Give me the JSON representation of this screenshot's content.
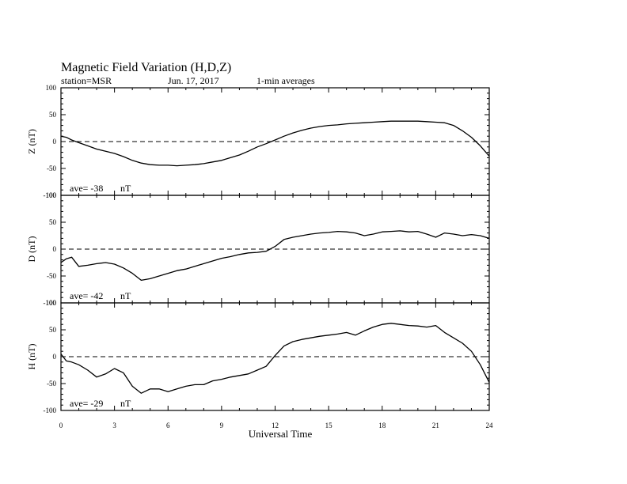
{
  "header": {
    "title": "Magnetic Field Variation (H,D,Z)",
    "station": "station=MSR",
    "date": "Jun. 17, 2017",
    "averaging": "1-min averages"
  },
  "chart_data": {
    "type": "line",
    "xlabel": "Universal Time",
    "xlim": [
      0,
      24
    ],
    "x_ticks": [
      "0",
      "3",
      "6",
      "9",
      "12",
      "15",
      "18",
      "21",
      "24"
    ],
    "grid": false,
    "zero_reference_line": "dashed",
    "panels": [
      {
        "name": "Z",
        "ylabel": "Z (nT)",
        "ylim": [
          -100,
          100
        ],
        "y_ticks": [
          "100",
          "50",
          "0",
          "-50",
          "-100"
        ],
        "average_label": "ave= -38",
        "average_unit": "nT",
        "x": [
          0,
          0.3,
          0.6,
          1,
          1.5,
          2,
          2.5,
          3,
          3.5,
          4,
          4.5,
          5,
          5.5,
          6,
          6.5,
          7,
          7.5,
          8,
          8.5,
          9,
          9.5,
          10,
          10.5,
          11,
          11.5,
          12,
          12.5,
          13,
          13.5,
          14,
          14.5,
          15,
          15.5,
          16,
          16.5,
          17,
          17.5,
          18,
          18.5,
          19,
          19.5,
          20,
          20.5,
          21,
          21.5,
          22,
          22.5,
          23,
          23.5,
          24
        ],
        "values": [
          10,
          8,
          3,
          -2,
          -8,
          -14,
          -18,
          -22,
          -28,
          -35,
          -40,
          -43,
          -44,
          -44,
          -45,
          -44,
          -43,
          -41,
          -38,
          -35,
          -30,
          -25,
          -18,
          -10,
          -4,
          3,
          10,
          16,
          21,
          25,
          28,
          30,
          31,
          33,
          34,
          35,
          36,
          37,
          38,
          38,
          38,
          38,
          37,
          36,
          35,
          30,
          20,
          8,
          -8,
          -27
        ]
      },
      {
        "name": "D",
        "ylabel": "D (nT)",
        "ylim": [
          -100,
          100
        ],
        "y_ticks": [
          "100",
          "50",
          "0",
          "-50",
          "-100"
        ],
        "average_label": "ave= -42",
        "average_unit": "nT",
        "x": [
          0,
          0.3,
          0.6,
          1,
          1.5,
          2,
          2.5,
          3,
          3.5,
          4,
          4.5,
          5,
          5.5,
          6,
          6.5,
          7,
          7.5,
          8,
          8.5,
          9,
          9.5,
          10,
          10.5,
          11,
          11.5,
          12,
          12.5,
          13,
          13.5,
          14,
          14.5,
          15,
          15.5,
          16,
          16.5,
          17,
          17.5,
          18,
          18.5,
          19,
          19.5,
          20,
          20.5,
          21,
          21.5,
          22,
          22.5,
          23,
          23.5,
          24
        ],
        "values": [
          -25,
          -18,
          -15,
          -32,
          -30,
          -27,
          -25,
          -28,
          -35,
          -45,
          -58,
          -55,
          -50,
          -45,
          -40,
          -37,
          -32,
          -27,
          -22,
          -17,
          -14,
          -10,
          -7,
          -6,
          -4,
          5,
          18,
          22,
          25,
          28,
          30,
          31,
          33,
          32,
          30,
          25,
          28,
          32,
          33,
          34,
          32,
          33,
          28,
          22,
          30,
          28,
          25,
          27,
          25,
          20
        ]
      },
      {
        "name": "H",
        "ylabel": "H (nT)",
        "ylim": [
          -100,
          100
        ],
        "y_ticks": [
          "100",
          "50",
          "0",
          "-50",
          "-100"
        ],
        "average_label": "ave= -29",
        "average_unit": "nT",
        "x": [
          0,
          0.3,
          0.6,
          1,
          1.5,
          2,
          2.5,
          3,
          3.5,
          4,
          4.5,
          5,
          5.5,
          6,
          6.5,
          7,
          7.5,
          8,
          8.5,
          9,
          9.5,
          10,
          10.5,
          11,
          11.5,
          12,
          12.5,
          13,
          13.5,
          14,
          14.5,
          15,
          15.5,
          16,
          16.5,
          17,
          17.5,
          18,
          18.5,
          19,
          19.5,
          20,
          20.5,
          21,
          21.5,
          22,
          22.5,
          23,
          23.5,
          24
        ],
        "values": [
          5,
          -8,
          -10,
          -15,
          -25,
          -38,
          -32,
          -22,
          -30,
          -55,
          -68,
          -60,
          -60,
          -65,
          -60,
          -55,
          -52,
          -52,
          -45,
          -42,
          -38,
          -35,
          -32,
          -25,
          -18,
          2,
          20,
          28,
          32,
          35,
          38,
          40,
          42,
          45,
          40,
          48,
          55,
          60,
          62,
          60,
          58,
          57,
          55,
          58,
          45,
          35,
          25,
          10,
          -15,
          -48
        ]
      }
    ]
  }
}
